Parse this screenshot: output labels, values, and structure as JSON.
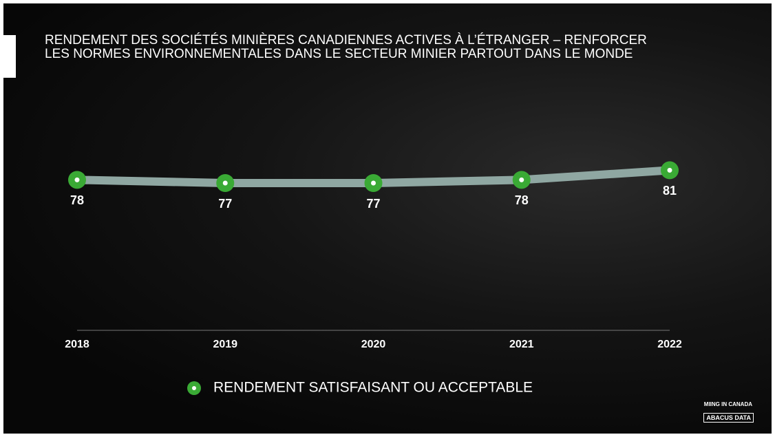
{
  "chart_data": {
    "type": "line",
    "title": "RENDEMENT DES SOCIÉTÉS MINIÈRES CANADIENNES ACTIVES À L’ÉTRANGER – RENFORCER LES NORMES ENVIRONNEMENTALES DANS LE SECTEUR MINIER PARTOUT DANS LE MONDE",
    "categories": [
      "2018",
      "2019",
      "2020",
      "2021",
      "2022"
    ],
    "series": [
      {
        "name": "RENDEMENT SATISFAISANT OU ACCEPTABLE",
        "color": "#8fa7a2",
        "marker_color": "#3aaa35",
        "values": [
          78,
          77,
          77,
          78,
          81
        ]
      }
    ],
    "ylim": [
      31,
      100
    ],
    "legend": "bottom"
  },
  "branding": {
    "tagline": "MIING IN CANADA",
    "logo": "ABACUS DATA"
  }
}
